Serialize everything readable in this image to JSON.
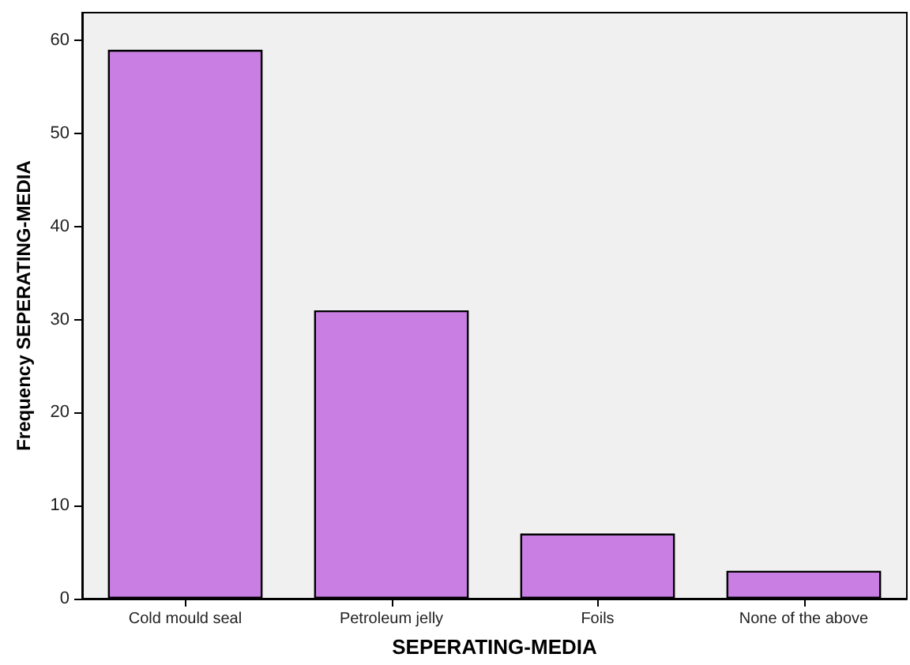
{
  "chart_data": {
    "type": "bar",
    "xlabel": "SEPERATING-MEDIA",
    "ylabel": "Frequency SEPERATING-MEDIA",
    "categories": [
      "Cold mould seal",
      "Petroleum jelly",
      "Foils",
      "None of the above"
    ],
    "values": [
      59,
      31,
      7,
      3
    ],
    "color": "#c97ee4",
    "ylim": [
      0,
      63
    ],
    "yticks": [
      0,
      10,
      20,
      30,
      40,
      50,
      60
    ],
    "grid": false
  }
}
